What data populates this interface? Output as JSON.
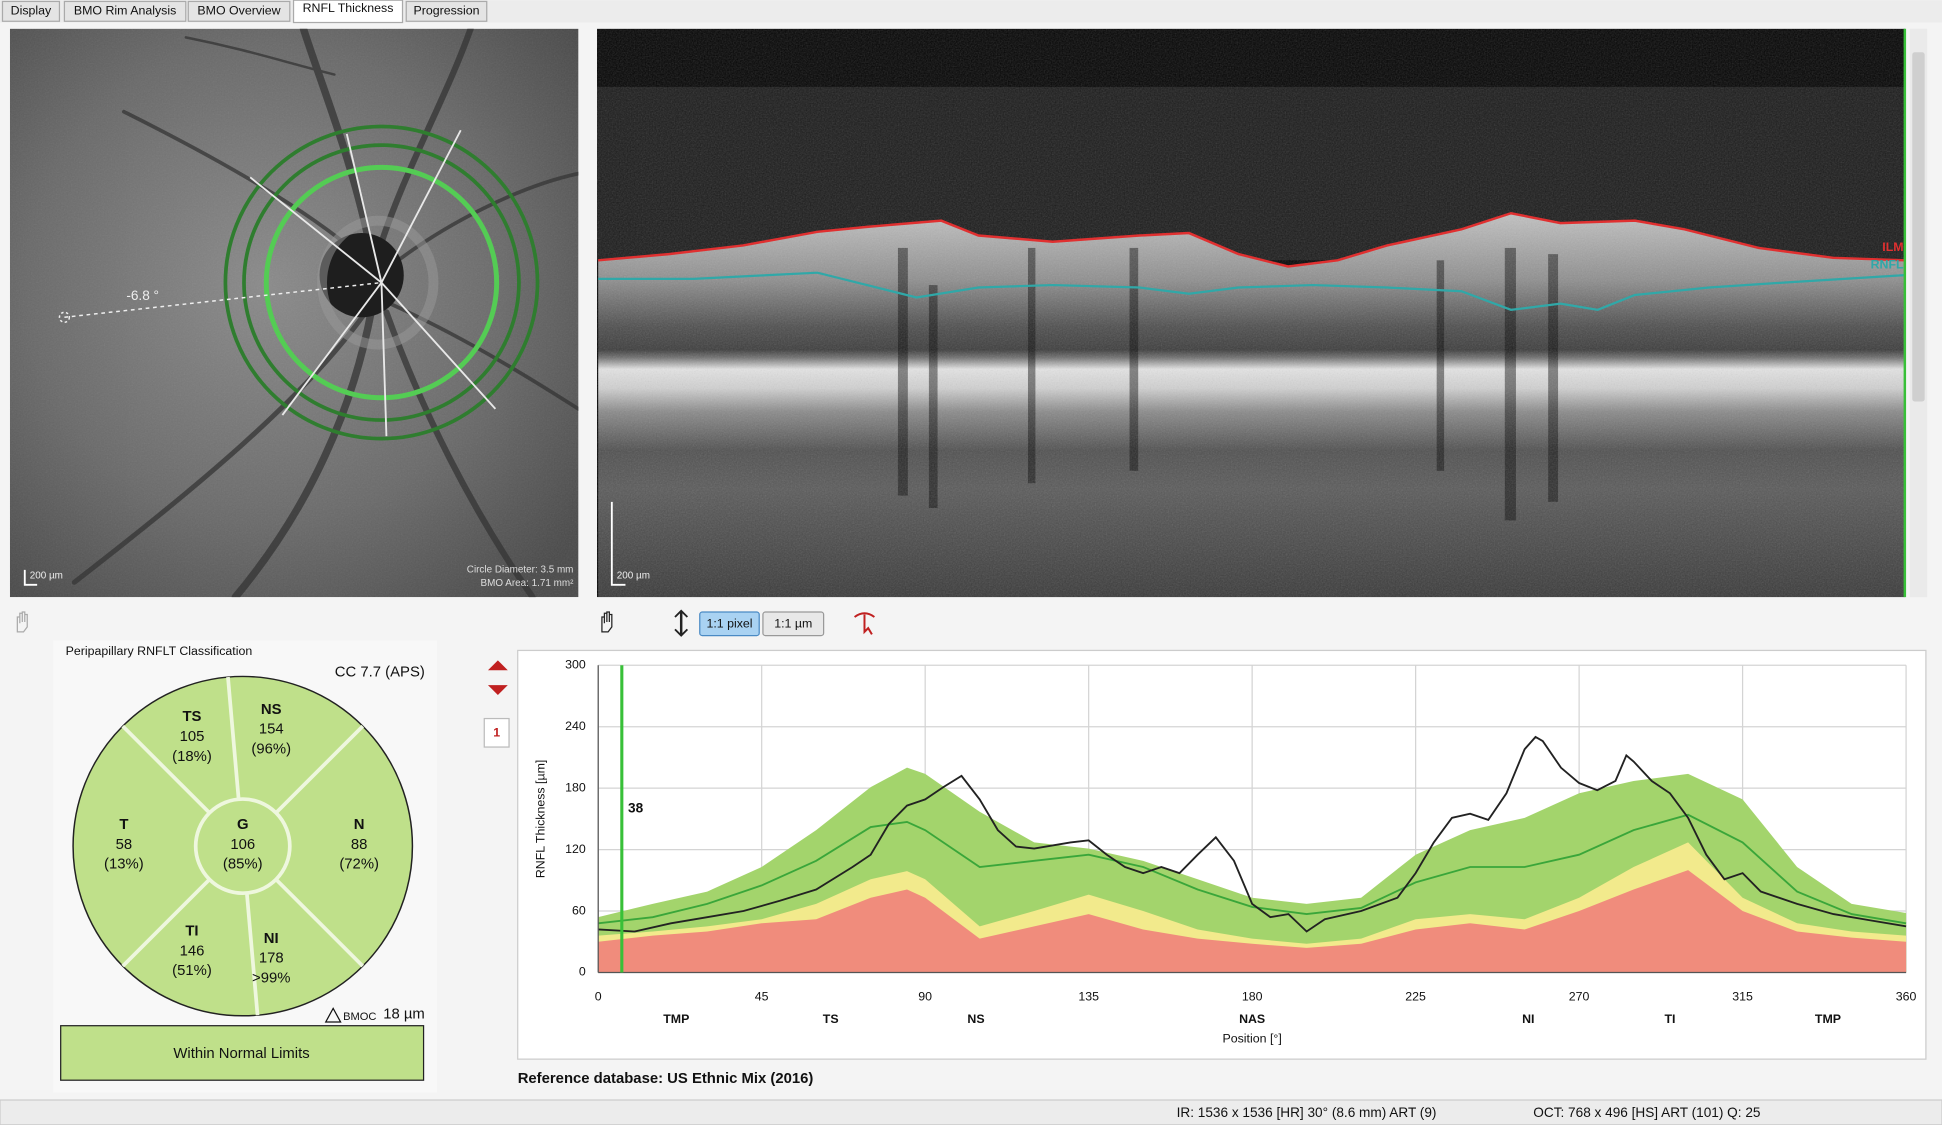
{
  "tabs": [
    "Display",
    "BMO Rim Analysis",
    "BMO Overview",
    "RNFL Thickness",
    "Progression"
  ],
  "active_tab": 3,
  "fundus": {
    "angle_label": "-6.8 °",
    "scale_label": "200 µm",
    "circle_diameter": "Circle Diameter: 3.5 mm",
    "bmo_area": "BMO Area: 1.71 mm²"
  },
  "oct": {
    "scale_label": "200 µm",
    "ilm_label": "ILM",
    "rnfl_label": "RNFL"
  },
  "toolbar": {
    "buttons": [
      "1:1 pixel",
      "1:1 µm"
    ]
  },
  "marker": "1",
  "classification": {
    "title": "Peripapillary RNFLT Classification",
    "cc": "CC 7.7 (APS)",
    "sectors": [
      {
        "name": "TS",
        "thickness": 105,
        "percentile": "(18%)"
      },
      {
        "name": "NS",
        "thickness": 154,
        "percentile": "(96%)"
      },
      {
        "name": "T",
        "thickness": 58,
        "percentile": "(13%)"
      },
      {
        "name": "G",
        "thickness": 106,
        "percentile": "(85%)"
      },
      {
        "name": "N",
        "thickness": 88,
        "percentile": "(72%)"
      },
      {
        "name": "TI",
        "thickness": 146,
        "percentile": "(51%)"
      },
      {
        "name": "NI",
        "thickness": 178,
        "percentile": ">99%"
      }
    ],
    "bmoc_label": "BMOC",
    "bmoc_value": "18 µm",
    "result": "Within Normal Limits"
  },
  "chart_data": {
    "type": "line",
    "y_label": "RNFL Thickness [µm]",
    "x_label": "Position [°]",
    "xlim": [
      0,
      360
    ],
    "ylim": [
      0,
      300
    ],
    "xticks": [
      0,
      45,
      90,
      135,
      180,
      225,
      270,
      315,
      360
    ],
    "yticks": [
      0,
      60,
      120,
      180,
      240,
      300
    ],
    "sector_ticks": [
      {
        "value": 21.5,
        "label": "TMP"
      },
      {
        "value": 64,
        "label": "TS"
      },
      {
        "value": 104,
        "label": "NS"
      },
      {
        "value": 180,
        "label": "NAS"
      },
      {
        "value": 256,
        "label": "NI"
      },
      {
        "value": 295,
        "label": "TI"
      },
      {
        "value": 338.5,
        "label": "TMP"
      }
    ],
    "grid": true,
    "cursor": {
      "x": 6.5,
      "value": 38
    },
    "series": [
      {
        "kind": "area",
        "color": "#a3d46c",
        "x": [
          0,
          15,
          30,
          45,
          60,
          75,
          85,
          90,
          105,
          120,
          135,
          150,
          165,
          180,
          195,
          210,
          225,
          240,
          255,
          270,
          285,
          300,
          315,
          330,
          345,
          360
        ],
        "values": [
          54,
          67,
          79,
          103,
          139,
          181,
          200,
          194,
          157,
          127,
          121,
          109,
          91,
          73,
          67,
          73,
          115,
          139,
          151,
          175,
          187,
          194,
          169,
          103,
          67,
          58
        ]
      },
      {
        "kind": "area",
        "color": "#f2ea8c",
        "x": [
          0,
          15,
          30,
          45,
          60,
          75,
          85,
          90,
          105,
          120,
          135,
          150,
          165,
          180,
          195,
          210,
          225,
          240,
          255,
          270,
          285,
          300,
          315,
          330,
          345,
          360
        ],
        "values": [
          36,
          40,
          45,
          52,
          67,
          91,
          99,
          91,
          45,
          60,
          76,
          60,
          42,
          33,
          28,
          33,
          52,
          57,
          52,
          73,
          103,
          127,
          73,
          48,
          40,
          36
        ]
      },
      {
        "kind": "area",
        "color": "#f08c7c",
        "x": [
          0,
          15,
          30,
          45,
          60,
          75,
          85,
          90,
          105,
          120,
          135,
          150,
          165,
          180,
          195,
          210,
          225,
          240,
          255,
          270,
          285,
          300,
          315,
          330,
          345,
          360
        ],
        "values": [
          30,
          36,
          40,
          48,
          52,
          73,
          81,
          73,
          33,
          45,
          57,
          42,
          33,
          28,
          24,
          28,
          42,
          48,
          42,
          60,
          81,
          100,
          60,
          40,
          34,
          30
        ]
      },
      {
        "kind": "line",
        "color": "#3aa63a",
        "x": [
          0,
          15,
          30,
          45,
          60,
          75,
          85,
          90,
          105,
          120,
          135,
          150,
          165,
          180,
          195,
          210,
          225,
          240,
          255,
          270,
          285,
          300,
          315,
          330,
          345,
          360
        ],
        "values": [
          48,
          54,
          67,
          85,
          109,
          142,
          147,
          139,
          103,
          109,
          115,
          103,
          81,
          64,
          57,
          63,
          88,
          103,
          103,
          115,
          139,
          154,
          127,
          79,
          57,
          48
        ]
      },
      {
        "kind": "line",
        "color": "#222222",
        "x": [
          0,
          10,
          20,
          30,
          40,
          50,
          60,
          70,
          75,
          80,
          85,
          90,
          95,
          100,
          105,
          110,
          115,
          120,
          130,
          135,
          140,
          145,
          150,
          155,
          160,
          165,
          170,
          175,
          180,
          185,
          190,
          195,
          200,
          210,
          220,
          225,
          230,
          235,
          240,
          245,
          250,
          255,
          258,
          260,
          265,
          270,
          275,
          280,
          283,
          285,
          290,
          295,
          300,
          305,
          310,
          315,
          320,
          330,
          340,
          350,
          360
        ],
        "values": [
          42,
          40,
          48,
          54,
          60,
          70,
          81,
          103,
          115,
          145,
          163,
          169,
          181,
          192,
          169,
          139,
          123,
          121,
          127,
          129,
          115,
          103,
          97,
          103,
          97,
          115,
          132,
          109,
          67,
          54,
          57,
          40,
          52,
          60,
          73,
          97,
          127,
          151,
          155,
          149,
          175,
          218,
          230,
          226,
          200,
          185,
          178,
          187,
          212,
          206,
          187,
          175,
          151,
          115,
          91,
          97,
          79,
          67,
          57,
          51,
          45
        ]
      }
    ]
  },
  "reference_database": "Reference database: US Ethnic Mix (2016)",
  "status": [
    "IR: 1536 x 1536 [HR] 30° (8.6 mm) ART (9)",
    "OCT: 768 x 496 [HS] ART (101) Q: 25"
  ]
}
